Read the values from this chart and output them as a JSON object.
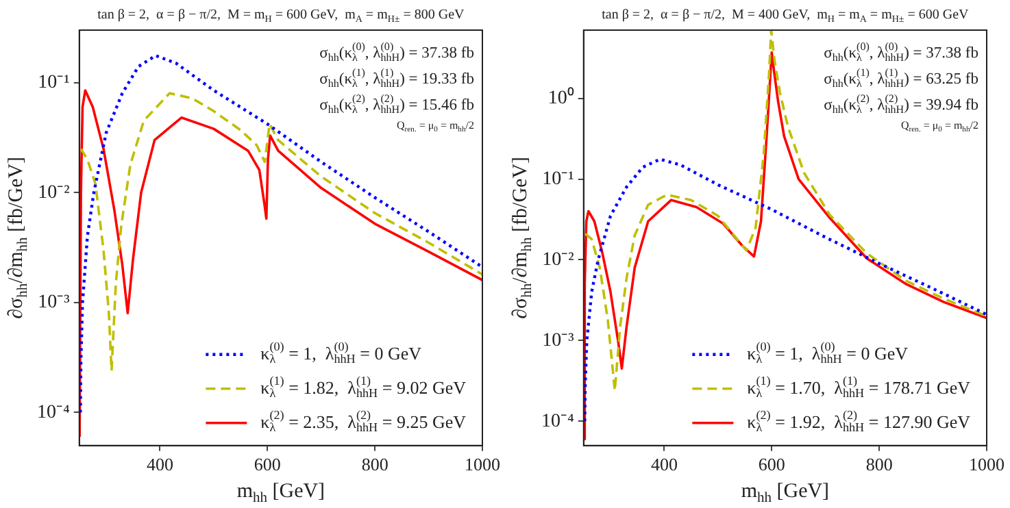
{
  "chart_data": [
    {
      "type": "line",
      "title": "tan β = 2,  α = β − π/2,  M = m$_{H}$ = 600 GeV,  m$_{A}$ = m$_{H±}$ = 800 GeV",
      "xlabel": "m$_{hh}$ [GeV]",
      "ylabel": "∂σ$_{hh}$/∂m$_{hh}$ [fb/GeV]",
      "xlim": [
        250,
        1000
      ],
      "xticks": [
        400,
        600,
        800,
        1000
      ],
      "ylim": [
        5e-05,
        0.3
      ],
      "log": "y",
      "yticks": [
        {
          "value": 0.0001,
          "label": "10⁻⁴"
        },
        {
          "value": 0.001,
          "label": "10⁻³"
        },
        {
          "value": 0.01,
          "label": "10⁻²"
        },
        {
          "value": 0.1,
          "label": "10⁻¹"
        }
      ],
      "grid": false,
      "legend": "bottom right",
      "marker": "none",
      "annotations": [
        "σ$_{hh}$(κ$_{λ}$$^{(0)}$, λ$_{hhH}$$^{(0)}$) = 37.38 fb",
        "σ$_{hh}$(κ$_{λ}$$^{(1)}$, λ$_{hhH}$$^{(1)}$) = 19.33 fb",
        "σ$_{hh}$(κ$_{λ}$$^{(2)}$, λ$_{hhH}$$^{(2)}$) = 15.46 fb",
        "Q$_{ren.}$ = μ$_{0}$ = m$_{hh}$/2"
      ],
      "series": [
        {
          "name": "κ$_{λ}$$^{(0)}$ = 1,  λ$_{hhH}$$^{(0)}$ = 0 GeV",
          "color": "#0000ff",
          "line_style": "dotted",
          "x": [
            252,
            253,
            256,
            265,
            277,
            300,
            330,
            360,
            392,
            430,
            500,
            600,
            700,
            800,
            900,
            1000
          ],
          "values": [
            0.0001,
            0.0003,
            0.001,
            0.004,
            0.01,
            0.035,
            0.08,
            0.14,
            0.176,
            0.15,
            0.085,
            0.042,
            0.019,
            0.009,
            0.0044,
            0.0021
          ]
        },
        {
          "name": "κ$_{λ}$$^{(1)}$ = 1.82,  λ$_{hhH}$$^{(1)}$ = 9.02 GeV",
          "color": "#bfbf00",
          "line_style": "dashed",
          "x": [
            253,
            265,
            280,
            295,
            305,
            310,
            318,
            328,
            345,
            370,
            418,
            460,
            500,
            550,
            580,
            595,
            604,
            620,
            700,
            800,
            900,
            1000
          ],
          "values": [
            0.025,
            0.02,
            0.012,
            0.003,
            0.0008,
            0.00024,
            0.0015,
            0.005,
            0.018,
            0.045,
            0.08,
            0.072,
            0.055,
            0.037,
            0.027,
            0.019,
            0.042,
            0.03,
            0.014,
            0.0065,
            0.0035,
            0.0018
          ]
        },
        {
          "name": "κ$_{λ}$$^{(2)}$ = 2.35,  λ$_{hhH}$$^{(2)}$ = 9.25 GeV",
          "color": "#ff0000",
          "line_style": "solid",
          "x": [
            250.5,
            253,
            256,
            261,
            275,
            295,
            315,
            330,
            340,
            350,
            365,
            390,
            440,
            500,
            564,
            585,
            595,
            598,
            601,
            605,
            620,
            700,
            800,
            900,
            1000
          ],
          "values": [
            6e-05,
            0.01,
            0.06,
            0.085,
            0.06,
            0.025,
            0.007,
            0.0022,
            0.0008,
            0.0025,
            0.01,
            0.03,
            0.048,
            0.038,
            0.024,
            0.016,
            0.0075,
            0.0058,
            0.02,
            0.033,
            0.024,
            0.011,
            0.0052,
            0.0029,
            0.0016
          ]
        }
      ]
    },
    {
      "type": "line",
      "title": "tan β = 2,  α = β − π/2,  M = 400 GeV,  m$_{H}$ = m$_{A}$ = m$_{H±}$ = 600 GeV",
      "xlabel": "m$_{hh}$ [GeV]",
      "ylabel": "∂σ$_{hh}$/∂m$_{hh}$ [fb/GeV]",
      "xlim": [
        250,
        1000
      ],
      "xticks": [
        400,
        600,
        800,
        1000
      ],
      "ylim": [
        5e-05,
        7
      ],
      "log": "y",
      "yticks": [
        {
          "value": 0.0001,
          "label": "10⁻⁴"
        },
        {
          "value": 0.001,
          "label": "10⁻³"
        },
        {
          "value": 0.01,
          "label": "10⁻²"
        },
        {
          "value": 0.1,
          "label": "10⁻¹"
        },
        {
          "value": 1,
          "label": "10⁰"
        }
      ],
      "grid": false,
      "legend": "bottom right",
      "marker": "none",
      "annotations": [
        "σ$_{hh}$(κ$_{λ}$$^{(0)}$, λ$_{hhH}$$^{(0)}$) = 37.38 fb",
        "σ$_{hh}$(κ$_{λ}$$^{(1)}$, λ$_{hhH}$$^{(1)}$) = 63.25 fb",
        "σ$_{hh}$(κ$_{λ}$$^{(2)}$, λ$_{hhH}$$^{(2)}$) = 39.94 fb",
        "Q$_{ren.}$ = μ$_{0}$ = m$_{hh}$/2"
      ],
      "series": [
        {
          "name": "κ$_{λ}$$^{(0)}$ = 1,  λ$_{hhH}$$^{(0)}$ = 0 GeV",
          "color": "#0000ff",
          "line_style": "dotted",
          "x": [
            252,
            253,
            256,
            265,
            277,
            300,
            330,
            360,
            392,
            430,
            500,
            600,
            700,
            800,
            900,
            1000
          ],
          "values": [
            0.0001,
            0.0003,
            0.001,
            0.004,
            0.01,
            0.035,
            0.08,
            0.14,
            0.176,
            0.15,
            0.085,
            0.042,
            0.019,
            0.009,
            0.0044,
            0.0021
          ]
        },
        {
          "name": "κ$_{λ}$$^{(1)}$ = 1.70,  λ$_{hhH}$$^{(1)}$ = 178.71 GeV",
          "color": "#bfbf00",
          "line_style": "dashed",
          "x": [
            253,
            265,
            280,
            295,
            308,
            318,
            330,
            345,
            370,
            405,
            450,
            500,
            530,
            553,
            570,
            585,
            595,
            599,
            605,
            615,
            630,
            660,
            708,
            777,
            850,
            920,
            1000
          ],
          "values": [
            0.021,
            0.018,
            0.008,
            0.0018,
            0.00024,
            0.0015,
            0.006,
            0.02,
            0.048,
            0.064,
            0.055,
            0.035,
            0.02,
            0.013,
            0.025,
            0.2,
            2,
            7,
            3,
            1.2,
            0.45,
            0.12,
            0.036,
            0.012,
            0.0055,
            0.0033,
            0.002
          ]
        },
        {
          "name": "κ$_{λ}$$^{(2)}$ = 1.92,  λ$_{hhH}$$^{(2)}$ = 127.90 GeV",
          "color": "#ff0000",
          "line_style": "solid",
          "x": [
            250.5,
            252,
            255,
            259,
            270,
            285,
            300,
            315,
            321,
            330,
            345,
            370,
            413,
            460,
            510,
            545,
            567,
            580,
            590,
            600,
            605,
            612,
            623,
            650,
            708,
            777,
            850,
            920,
            1000
          ],
          "values": [
            6e-05,
            0.005,
            0.03,
            0.04,
            0.03,
            0.012,
            0.004,
            0.0009,
            0.00045,
            0.0015,
            0.008,
            0.03,
            0.055,
            0.045,
            0.028,
            0.015,
            0.011,
            0.03,
            0.3,
            3.7,
            2,
            0.9,
            0.34,
            0.1,
            0.033,
            0.0104,
            0.005,
            0.003,
            0.0019
          ]
        }
      ]
    }
  ]
}
